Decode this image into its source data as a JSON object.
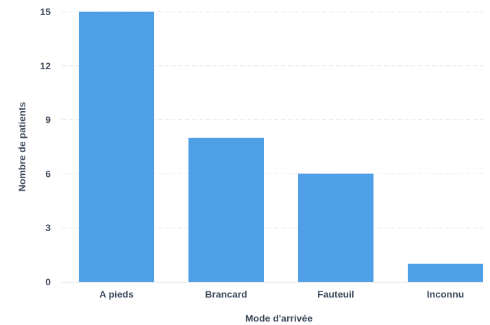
{
  "chart_data": {
    "type": "bar",
    "categories": [
      "A pieds",
      "Brancard",
      "Fauteuil",
      "Inconnu"
    ],
    "values": [
      15,
      8,
      6,
      1
    ],
    "title": "",
    "xlabel": "Mode d'arrivée",
    "ylabel": "Nombre de patients",
    "ylim": [
      0,
      15
    ],
    "yticks": [
      0,
      3,
      6,
      9,
      12,
      15
    ],
    "grid": "horizontal dashed",
    "legend": "none",
    "colors": {
      "bar": "#4e9fe5",
      "grid": "#e3e6ea",
      "text": "#3d4a5c"
    }
  }
}
